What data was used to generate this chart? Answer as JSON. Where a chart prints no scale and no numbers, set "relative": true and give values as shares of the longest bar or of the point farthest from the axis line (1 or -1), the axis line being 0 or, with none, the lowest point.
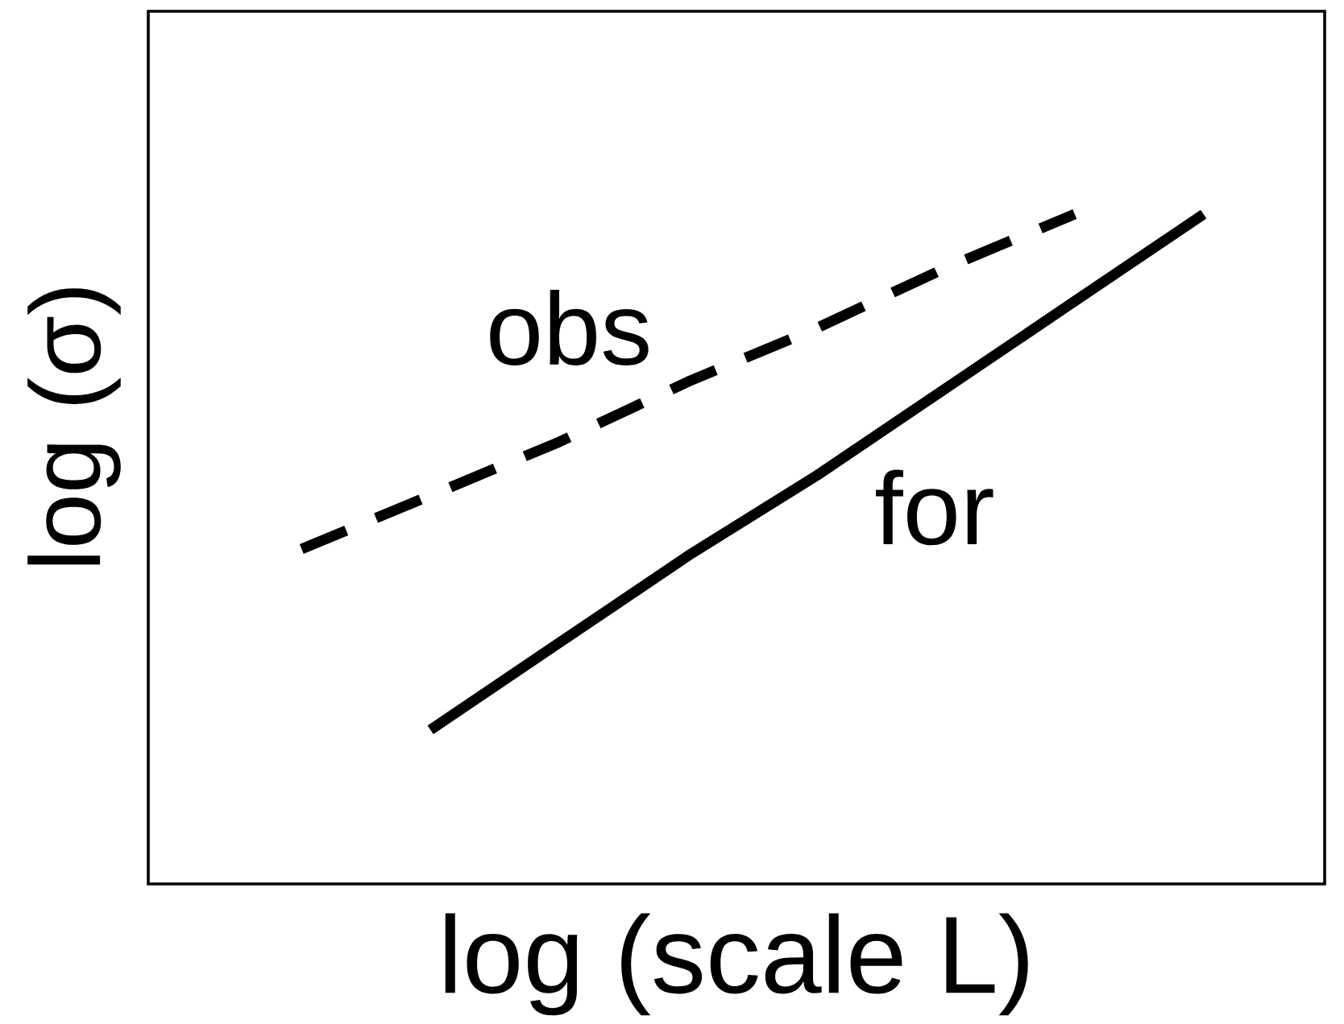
{
  "chart_data": {
    "type": "line",
    "xlabel": "log (scale L)",
    "ylabel": "log (σ)",
    "relative": true,
    "tick_labels": false,
    "categories": [
      null,
      null,
      null,
      null,
      null,
      null,
      null,
      null
    ],
    "series": [
      {
        "name": "obs",
        "color": "#000000",
        "line_style": "dashed",
        "values": [
          0.5,
          0.58,
          0.66,
          0.75,
          0.83,
          0.92,
          1,
          null
        ]
      },
      {
        "name": "for",
        "color": "#000000",
        "line_style": "solid",
        "values": [
          null,
          0.23,
          0.36,
          0.49,
          0.61,
          0.74,
          0.87,
          1
        ]
      }
    ]
  }
}
